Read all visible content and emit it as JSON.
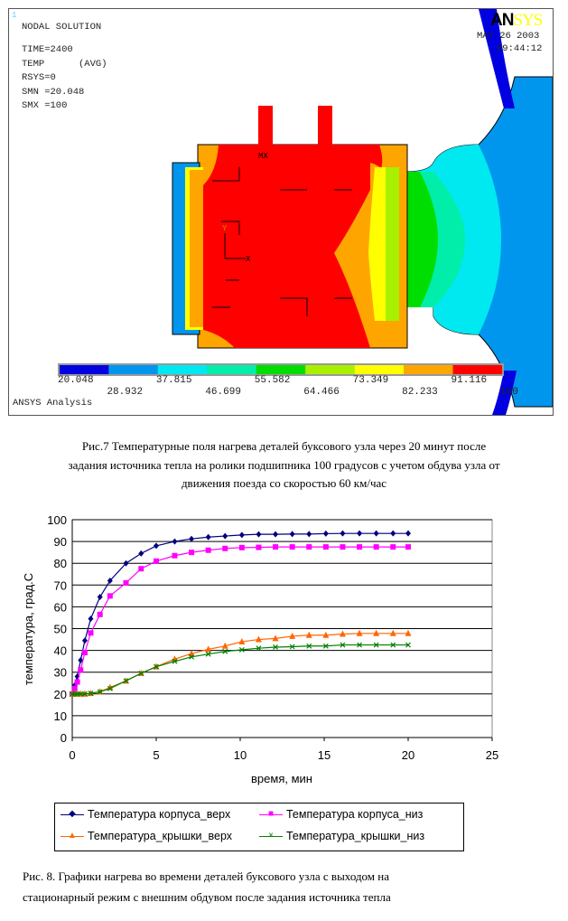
{
  "ansys": {
    "window_number": "1",
    "title": "NODAL SOLUTION",
    "params": [
      "TIME=2400",
      "TEMP      (AVG)",
      "RSYS=0",
      "SMN =20.048",
      "SMX =100"
    ],
    "logo": "ANSYS",
    "date": "MAY 26 2003",
    "time": "09:44:12",
    "labels": {
      "mx": "MX",
      "y_axis": "Y",
      "x_axis": "X"
    },
    "footer": "ANSYS Analysis",
    "legend_values": [
      "20.048",
      "28.932",
      "37.815",
      "46.699",
      "55.582",
      "64.466",
      "73.349",
      "82.233",
      "91.116",
      "100"
    ],
    "legend_colors": [
      "#0000e0",
      "#0096ee",
      "#00e8f0",
      "#00eeaa",
      "#00dd00",
      "#a8f000",
      "#ffff00",
      "#ffa500",
      "#ff0000"
    ]
  },
  "caption1": [
    "Рис.7 Температурные  поля нагрева деталей буксового узла  через 20 минут  после",
    "задания источника тепла на ролики подшипника 100 градусов с учетом обдува узла от",
    "движения поезда со скоростью 60 км/час"
  ],
  "chart_data": {
    "type": "line",
    "xlabel": "время, мин",
    "ylabel": "температура, град.С",
    "xlim": [
      0,
      25
    ],
    "ylim": [
      0,
      100
    ],
    "xticks": [
      "0",
      "5",
      "10",
      "15",
      "20",
      "25"
    ],
    "yticks": [
      "0",
      "10",
      "20",
      "30",
      "40",
      "50",
      "60",
      "70",
      "80",
      "90",
      "100"
    ],
    "grid": "horizontal",
    "legend_position": "bottom",
    "x": [
      0,
      0.15,
      0.3,
      0.5,
      0.75,
      1.1,
      1.65,
      2.25,
      3.2,
      4.1,
      5,
      6.1,
      7.1,
      8.1,
      9.1,
      10.1,
      11.1,
      12.1,
      13.1,
      14.1,
      15.1,
      16.1,
      17.1,
      18.1,
      19.1,
      20
    ],
    "series": [
      {
        "name": "Температура корпуса_верх",
        "color": "#000080",
        "marker": "diamond",
        "values": [
          20,
          24,
          28,
          35.5,
          44.5,
          54.5,
          64.5,
          72,
          80,
          84.5,
          88,
          90,
          91.2,
          92,
          92.5,
          93,
          93.3,
          93.3,
          93.4,
          93.4,
          93.6,
          93.7,
          93.7,
          93.7,
          93.7,
          93.7
        ]
      },
      {
        "name": "Температура корпуса_низ",
        "color": "#ff00ff",
        "marker": "square",
        "values": [
          20,
          22.5,
          25.5,
          31,
          39,
          48,
          56.5,
          65,
          71,
          77.5,
          81,
          83.5,
          85,
          86,
          86.8,
          87.2,
          87.3,
          87.5,
          87.5,
          87.5,
          87.5,
          87.5,
          87.5,
          87.5,
          87.5,
          87.5
        ]
      },
      {
        "name": "Температура_крышки_верх",
        "color": "#ff6600",
        "marker": "triangle",
        "values": [
          20,
          20,
          20,
          20,
          20,
          20.3,
          21,
          23,
          26,
          29.5,
          32.5,
          36,
          38.5,
          40.5,
          42,
          44,
          45,
          45.5,
          46.5,
          47,
          47,
          47.5,
          47.8,
          47.8,
          47.8,
          47.8
        ]
      },
      {
        "name": "Температура_крышки_низ",
        "color": "#008000",
        "marker": "x",
        "values": [
          20,
          20,
          20,
          20,
          20,
          20.3,
          21,
          22.5,
          26,
          29.5,
          32.5,
          35,
          37,
          38.3,
          39.5,
          40.3,
          41,
          41.5,
          41.7,
          42,
          42,
          42.5,
          42.5,
          42.5,
          42.5,
          42.5
        ]
      }
    ]
  },
  "caption2": [
    "Рис. 8. Графики нагрева во времени деталей буксового узла с выходом на",
    "стационарный режим с внешним обдувом после задания источника тепла"
  ]
}
